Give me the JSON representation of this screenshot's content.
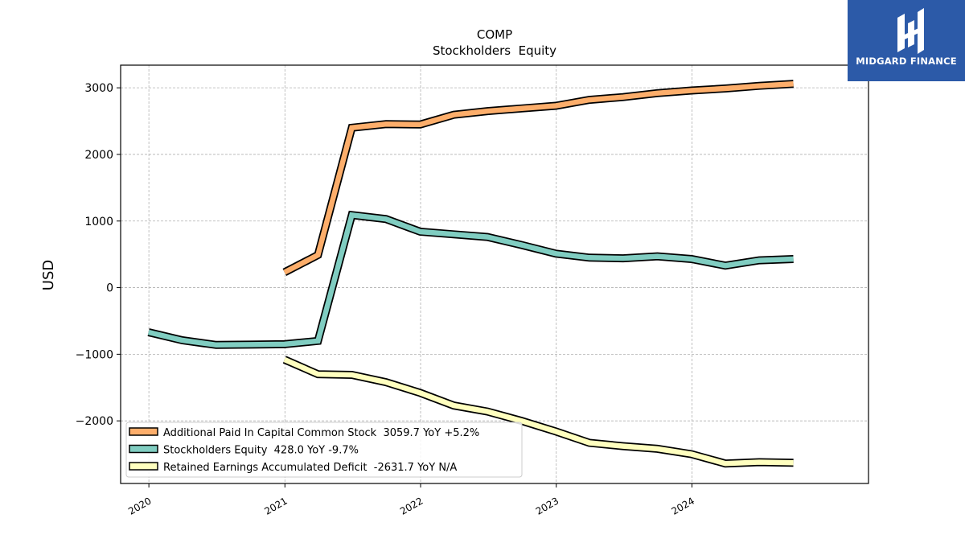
{
  "brand": {
    "name": "MIDGARD FINANCE",
    "logo_icon": "midgard-finance-logo-icon",
    "background_color": "#2c5aa8"
  },
  "chart_data": {
    "type": "line",
    "title": "COMP",
    "subtitle": "Stockholders  Equity",
    "ylabel": "USD",
    "xlabel": "",
    "x_ticks": [
      "2020",
      "2021",
      "2022",
      "2023",
      "2024"
    ],
    "y_ticks": [
      -2000,
      -1000,
      0,
      1000,
      2000,
      3000
    ],
    "y_tick_labels": [
      "−2000",
      "−1000",
      "0",
      "1000",
      "2000",
      "3000"
    ],
    "xlim": [
      "2019-10-17",
      "2025-04-20"
    ],
    "ylim": [
      -2940,
      3340
    ],
    "grid": true,
    "legend_position": "lower-left",
    "series": [
      {
        "name": "Additional Paid In Capital Common Stock  3059.7 YoY +5.2%",
        "color": "#fdae6b",
        "dates": [
          "2020-12-31",
          "2021-03-31",
          "2021-06-30",
          "2021-09-30",
          "2021-12-31",
          "2022-03-31",
          "2022-06-30",
          "2022-09-30",
          "2022-12-31",
          "2023-03-31",
          "2023-06-30",
          "2023-09-30",
          "2023-12-31",
          "2024-03-31",
          "2024-06-30",
          "2024-09-30"
        ],
        "values": [
          230,
          490,
          2400,
          2455,
          2450,
          2595,
          2650,
          2690,
          2730,
          2820,
          2860,
          2920,
          2960,
          2990,
          3030,
          3060
        ]
      },
      {
        "name": "Stockholders Equity  428.0 YoY -9.7%",
        "color": "#80cdc1",
        "dates": [
          "2019-12-31",
          "2020-03-31",
          "2020-06-30",
          "2020-09-30",
          "2020-12-31",
          "2021-03-31",
          "2021-06-30",
          "2021-09-30",
          "2021-12-31",
          "2022-03-31",
          "2022-06-30",
          "2022-09-30",
          "2022-12-31",
          "2023-03-31",
          "2023-06-30",
          "2023-09-30",
          "2023-12-31",
          "2024-03-31",
          "2024-06-30",
          "2024-09-30"
        ],
        "values": [
          -670,
          -790,
          -860,
          -855,
          -850,
          -800,
          1090,
          1030,
          840,
          800,
          760,
          640,
          510,
          450,
          440,
          470,
          430,
          330,
          410,
          430
        ]
      },
      {
        "name": "Retained Earnings Accumulated Deficit  -2631.7 YoY N/A",
        "color": "#ffffbf",
        "dates": [
          "2020-12-31",
          "2021-03-31",
          "2021-06-30",
          "2021-09-30",
          "2021-12-31",
          "2022-03-31",
          "2022-06-30",
          "2022-09-30",
          "2022-12-31",
          "2023-03-31",
          "2023-06-30",
          "2023-09-30",
          "2023-12-31",
          "2024-03-31",
          "2024-06-30",
          "2024-09-30"
        ],
        "values": [
          -1080,
          -1300,
          -1310,
          -1420,
          -1580,
          -1770,
          -1860,
          -2000,
          -2160,
          -2330,
          -2380,
          -2420,
          -2500,
          -2640,
          -2620,
          -2630
        ]
      }
    ]
  }
}
